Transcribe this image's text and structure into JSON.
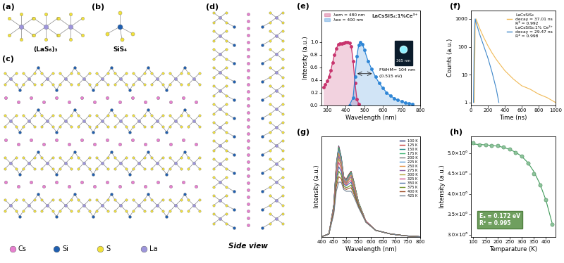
{
  "diagrams": {
    "a": {
      "label": "(a)",
      "caption": "(LaS₆)₃"
    },
    "b": {
      "label": "(b)",
      "caption": "SiS₄"
    },
    "c": {
      "label": "(c)",
      "legend": [
        {
          "name": "Cs",
          "color": "#e77fcf"
        },
        {
          "name": "Si",
          "color": "#1f5fb0"
        },
        {
          "name": "S",
          "color": "#f2e23a"
        },
        {
          "name": "La",
          "color": "#9d95db"
        }
      ]
    },
    "d": {
      "label": "(d)",
      "caption": "Side view"
    }
  },
  "chart_data": [
    {
      "type": "area",
      "title": "(e)",
      "x_label": "Wavelength (nm)",
      "y_label": "Intensity (a.u.)",
      "xlim": [
        270,
        800
      ],
      "xticks": [
        300,
        400,
        500,
        600,
        700,
        800
      ],
      "ylim": [
        0.0,
        1.5
      ],
      "yticks": [
        0.0,
        0.2,
        0.4,
        0.6,
        0.8,
        1.0
      ],
      "legend": "upper left",
      "annotations": [
        "LaCsSiS₄:1%Ce³⁺",
        "FWHM= 104 nm",
        "(0.515 eV)",
        "365 nm"
      ],
      "series": [
        {
          "name": "λem = 480 nm",
          "color": "#c8346e",
          "marker": "circle",
          "x": [
            280,
            290,
            300,
            310,
            320,
            330,
            340,
            350,
            360,
            370,
            380,
            390,
            400,
            410,
            420,
            430,
            440,
            450,
            460,
            470
          ],
          "values": [
            0.28,
            0.33,
            0.38,
            0.45,
            0.55,
            0.68,
            0.8,
            0.9,
            0.96,
            0.98,
            0.98,
            0.99,
            1.0,
            1.0,
            0.99,
            0.93,
            0.7,
            0.35,
            0.1,
            0.02
          ]
        },
        {
          "name": "λex = 400 nm",
          "color": "#2f86d6",
          "marker": "circle",
          "x": [
            420,
            440,
            450,
            460,
            470,
            480,
            490,
            500,
            520,
            540,
            560,
            580,
            600,
            620,
            640,
            660,
            680,
            700,
            720,
            740,
            760
          ],
          "values": [
            0.0,
            0.12,
            0.45,
            0.78,
            0.95,
            1.0,
            0.97,
            0.88,
            0.7,
            0.57,
            0.45,
            0.35,
            0.27,
            0.2,
            0.15,
            0.11,
            0.08,
            0.06,
            0.04,
            0.03,
            0.02
          ]
        }
      ]
    },
    {
      "type": "line",
      "title": "(f)",
      "x_label": "Time (ns)",
      "y_label": "Counts (a.u.)",
      "log": "y",
      "xlim": [
        0,
        1000
      ],
      "xticks": [
        0,
        200,
        400,
        600,
        800,
        1000
      ],
      "ylim": [
        0.8,
        2000
      ],
      "yticks": [
        1,
        10,
        100,
        1000
      ],
      "legend": "upper right",
      "series": [
        {
          "name": "LaCsSiS₄\ndecay = 37.01 ns\nR² = 0.992",
          "color": "#f0b955",
          "marker": "none",
          "x": [
            40,
            50,
            60,
            80,
            100,
            150,
            200,
            250,
            300,
            350,
            400,
            500,
            600,
            700,
            800,
            900,
            1000
          ],
          "values": [
            1,
            600,
            1000,
            700,
            480,
            220,
            110,
            60,
            35,
            22,
            14,
            7,
            4,
            3,
            2,
            1.5,
            1
          ]
        },
        {
          "name": "LaCsSiS₄:1% Ce³⁺\ndecay = 29.47 ns\nR² = 0.998",
          "color": "#3f87c9",
          "marker": "none",
          "x": [
            30,
            40,
            50,
            60,
            80,
            100,
            150,
            200,
            250,
            300,
            330
          ],
          "values": [
            1,
            300,
            1000,
            750,
            480,
            300,
            110,
            40,
            12,
            3,
            1
          ]
        }
      ]
    },
    {
      "type": "line",
      "title": "(g)",
      "x_label": "Wavelength (nm)",
      "y_label": "Intensity (a.u.)",
      "tick_labels": "x",
      "xlim": [
        400,
        800
      ],
      "xticks": [
        400,
        450,
        500,
        550,
        600,
        650,
        700,
        750,
        800
      ],
      "ylim": [
        0.0,
        1.1
      ],
      "legend": "upper right",
      "x": [
        400,
        430,
        450,
        460,
        470,
        480,
        490,
        500,
        510,
        520,
        530,
        550,
        580,
        620,
        680,
        740,
        800
      ],
      "series": [
        {
          "name": "100 K",
          "color": "#1f2a6b",
          "values": [
            0.0,
            0.03,
            0.35,
            0.8,
            1.0,
            0.88,
            0.66,
            0.63,
            0.68,
            0.72,
            0.62,
            0.38,
            0.17,
            0.07,
            0.03,
            0.01,
            0.0
          ]
        },
        {
          "name": "125 K",
          "color": "#c83a3a",
          "values": [
            0.0,
            0.03,
            0.35,
            0.79,
            0.99,
            0.87,
            0.66,
            0.63,
            0.68,
            0.72,
            0.62,
            0.38,
            0.17,
            0.07,
            0.03,
            0.01,
            0.0
          ]
        },
        {
          "name": "150 K",
          "color": "#2e8b8b",
          "values": [
            0.0,
            0.03,
            0.35,
            0.79,
            0.98,
            0.87,
            0.65,
            0.62,
            0.67,
            0.71,
            0.61,
            0.38,
            0.17,
            0.07,
            0.03,
            0.01,
            0.0
          ]
        },
        {
          "name": "175 K",
          "color": "#3cb371",
          "values": [
            0.0,
            0.03,
            0.34,
            0.78,
            0.98,
            0.86,
            0.65,
            0.62,
            0.67,
            0.71,
            0.61,
            0.38,
            0.17,
            0.07,
            0.03,
            0.01,
            0.0
          ]
        },
        {
          "name": "200 K",
          "color": "#7a7a7a",
          "values": [
            0.0,
            0.03,
            0.34,
            0.77,
            0.96,
            0.85,
            0.65,
            0.62,
            0.66,
            0.7,
            0.6,
            0.37,
            0.17,
            0.07,
            0.03,
            0.01,
            0.0
          ]
        },
        {
          "name": "225 K",
          "color": "#5b9bd5",
          "values": [
            0.0,
            0.03,
            0.34,
            0.76,
            0.94,
            0.84,
            0.64,
            0.61,
            0.65,
            0.69,
            0.59,
            0.37,
            0.17,
            0.07,
            0.03,
            0.01,
            0.0
          ]
        },
        {
          "name": "250 K",
          "color": "#e08a3c",
          "values": [
            0.0,
            0.03,
            0.33,
            0.74,
            0.92,
            0.82,
            0.63,
            0.6,
            0.64,
            0.68,
            0.59,
            0.37,
            0.17,
            0.07,
            0.03,
            0.01,
            0.0
          ]
        },
        {
          "name": "275 K",
          "color": "#8e5ea2",
          "values": [
            0.0,
            0.03,
            0.32,
            0.72,
            0.89,
            0.8,
            0.62,
            0.59,
            0.63,
            0.66,
            0.57,
            0.36,
            0.17,
            0.07,
            0.03,
            0.01,
            0.0
          ]
        },
        {
          "name": "300 K",
          "color": "#b5a642",
          "values": [
            0.0,
            0.03,
            0.31,
            0.69,
            0.86,
            0.78,
            0.61,
            0.58,
            0.62,
            0.64,
            0.56,
            0.36,
            0.17,
            0.07,
            0.03,
            0.01,
            0.0
          ]
        },
        {
          "name": "325 K",
          "color": "#d45087",
          "values": [
            0.0,
            0.03,
            0.3,
            0.66,
            0.82,
            0.75,
            0.6,
            0.57,
            0.6,
            0.62,
            0.54,
            0.35,
            0.17,
            0.07,
            0.03,
            0.01,
            0.0
          ]
        },
        {
          "name": "350 K",
          "color": "#4a6fa5",
          "values": [
            0.0,
            0.03,
            0.29,
            0.63,
            0.77,
            0.72,
            0.58,
            0.56,
            0.58,
            0.6,
            0.52,
            0.35,
            0.16,
            0.07,
            0.03,
            0.01,
            0.0
          ]
        },
        {
          "name": "375 K",
          "color": "#6b8e23",
          "values": [
            0.0,
            0.03,
            0.28,
            0.59,
            0.72,
            0.68,
            0.56,
            0.54,
            0.55,
            0.57,
            0.5,
            0.34,
            0.16,
            0.07,
            0.03,
            0.01,
            0.0
          ]
        },
        {
          "name": "400 K",
          "color": "#a0522d",
          "values": [
            0.0,
            0.03,
            0.27,
            0.55,
            0.66,
            0.64,
            0.54,
            0.52,
            0.53,
            0.54,
            0.48,
            0.33,
            0.16,
            0.07,
            0.03,
            0.01,
            0.0
          ]
        },
        {
          "name": "425 K",
          "color": "#708090",
          "values": [
            0.0,
            0.03,
            0.25,
            0.5,
            0.6,
            0.6,
            0.52,
            0.5,
            0.5,
            0.5,
            0.45,
            0.32,
            0.16,
            0.07,
            0.03,
            0.01,
            0.0
          ]
        }
      ]
    },
    {
      "type": "scatter",
      "title": "(h)",
      "x_label": "Temparature (K)",
      "y_label": "Intensity (a.u.)",
      "xlim": [
        90,
        440
      ],
      "xticks": [
        100,
        150,
        200,
        250,
        300,
        350,
        400
      ],
      "ylim": [
        2950000,
        5400000
      ],
      "yticks": [
        {
          "value": 3000000,
          "label": "3.0×10⁶"
        },
        {
          "value": 3500000,
          "label": "3.5×10⁶"
        },
        {
          "value": 4000000,
          "label": "4.0×10⁶"
        },
        {
          "value": 4500000,
          "label": "4.5×10⁶"
        },
        {
          "value": 5000000,
          "label": "5.0×10⁶"
        }
      ],
      "annotations": [
        "Eₐ = 0.172 eV",
        "R² = 0.995"
      ],
      "x": [
        100,
        125,
        150,
        175,
        200,
        225,
        250,
        275,
        300,
        325,
        350,
        375,
        400,
        425
      ],
      "series": [
        {
          "type": "line",
          "color": "#3f9a5a",
          "marker": "none",
          "values": [
            5220000,
            5210000,
            5200000,
            5190000,
            5170000,
            5140000,
            5090000,
            5020000,
            4920000,
            4770000,
            4550000,
            4250000,
            3850000,
            3300000
          ]
        },
        {
          "type": "scatter",
          "color": "#8cc49a",
          "marker": "circle",
          "values": [
            5250000,
            5200000,
            5200000,
            5190000,
            5180000,
            5150000,
            5100000,
            5020000,
            4920000,
            4750000,
            4500000,
            4220000,
            3850000,
            3250000
          ]
        }
      ]
    }
  ]
}
